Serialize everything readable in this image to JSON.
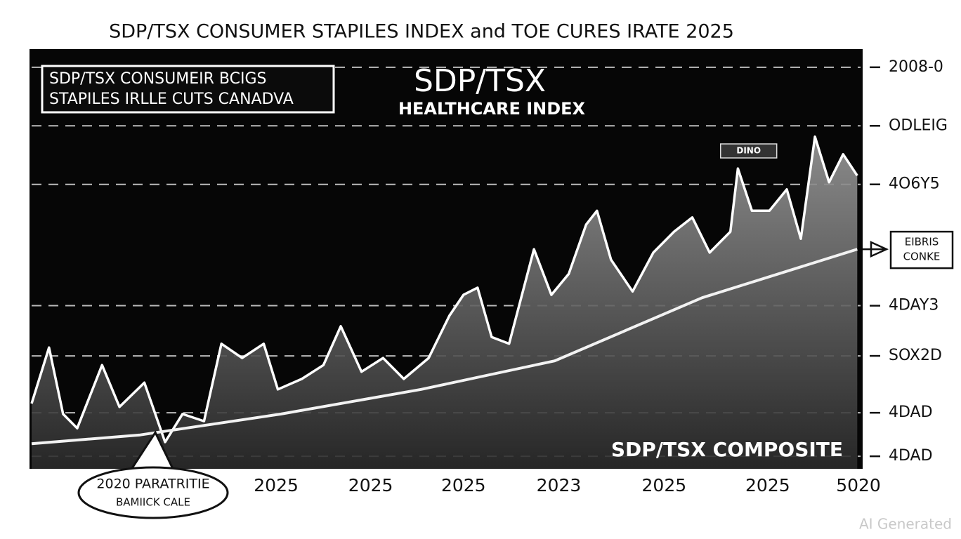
{
  "chart_data": {
    "type": "line",
    "title": "SDP/TSX CONSUMER STAPILES INDEX and TOE CURES IRATE 2025",
    "legend_box": [
      "SDP/TSX CONSUMEIR BCIGS",
      "STAPILES IRLLE CUTS CANADVA"
    ],
    "center_title": [
      "SDP/TSX",
      "HEALTHCARE INDEX"
    ],
    "composite_label": "SDP/TSX COMPOSITE",
    "series": [
      {
        "name": "SDP/TSX HEALTHCARE INDEX",
        "color": "#ffffff",
        "x": [
          0,
          2.1,
          3.8,
          5.5,
          8.5,
          10.6,
          13.6,
          16.1,
          18.2,
          20.8,
          22.9,
          25.4,
          28.0,
          29.7,
          32.6,
          35.2,
          37.3,
          39.8,
          42.4,
          44.9,
          47.9,
          50.4,
          52.1,
          53.8,
          55.5,
          57.6,
          60.6,
          62.7,
          64.8,
          66.9,
          68.2,
          69.9,
          72.5,
          75.0,
          77.5,
          79.7,
          81.8,
          84.3,
          85.2,
          86.9,
          89.0,
          91.1,
          92.8,
          94.5,
          96.2,
          97.9,
          99.6
        ],
        "values": [
          15.6,
          29.0,
          13.1,
          9.7,
          24.8,
          14.8,
          20.6,
          6.4,
          13.1,
          11.4,
          29.9,
          26.5,
          29.9,
          19.0,
          21.5,
          24.8,
          34.1,
          23.2,
          26.5,
          21.5,
          26.5,
          36.6,
          41.6,
          43.3,
          31.5,
          29.9,
          52.5,
          41.6,
          46.6,
          58.4,
          61.7,
          50.0,
          42.4,
          51.7,
          56.7,
          60.1,
          51.7,
          56.7,
          71.8,
          61.7,
          61.7,
          66.8,
          55.0,
          79.4,
          68.5,
          75.2,
          70.1
        ]
      },
      {
        "name": "SDP/TSX COMPOSITE",
        "color": "#f2f2f2",
        "x": [
          0,
          13.1,
          30.1,
          47.0,
          63.1,
          80.9,
          99.6
        ],
        "values": [
          6.0,
          8.1,
          13.1,
          19.0,
          25.8,
          40.9,
          52.5
        ]
      }
    ],
    "xlim": [
      0,
      100
    ],
    "xticks": [
      {
        "value": 29.5,
        "label": "2025"
      },
      {
        "value": 40.9,
        "label": "2025"
      },
      {
        "value": 52.1,
        "label": "2025"
      },
      {
        "value": 63.6,
        "label": "2023"
      },
      {
        "value": 76.3,
        "label": "2025"
      },
      {
        "value": 88.8,
        "label": "2025"
      },
      {
        "value": 100,
        "label": "5020"
      }
    ],
    "ylim": [
      0,
      100
    ],
    "yticks": [
      {
        "value": 3,
        "label": "4DAD"
      },
      {
        "value": 13.4,
        "label": "4DAD"
      },
      {
        "value": 27,
        "label": "SOX2D"
      },
      {
        "value": 39,
        "label": "4DAY3"
      },
      {
        "value": 68,
        "label": "4O6Y5"
      },
      {
        "value": 82,
        "label": "ODLEIG"
      },
      {
        "value": 96,
        "label": "2008-0"
      }
    ],
    "grid": true,
    "annotations": [
      {
        "text": "DINO",
        "x": 86.5,
        "y": 76
      },
      {
        "text": [
          "2020 PARATRITIE",
          "BAMIICK CALE"
        ],
        "x": 14.5,
        "y": 7
      },
      {
        "text": [
          "EIBRIS",
          "CONKE"
        ],
        "x": 99.6,
        "y": 52.5
      }
    ],
    "watermark": "AI Generated"
  }
}
